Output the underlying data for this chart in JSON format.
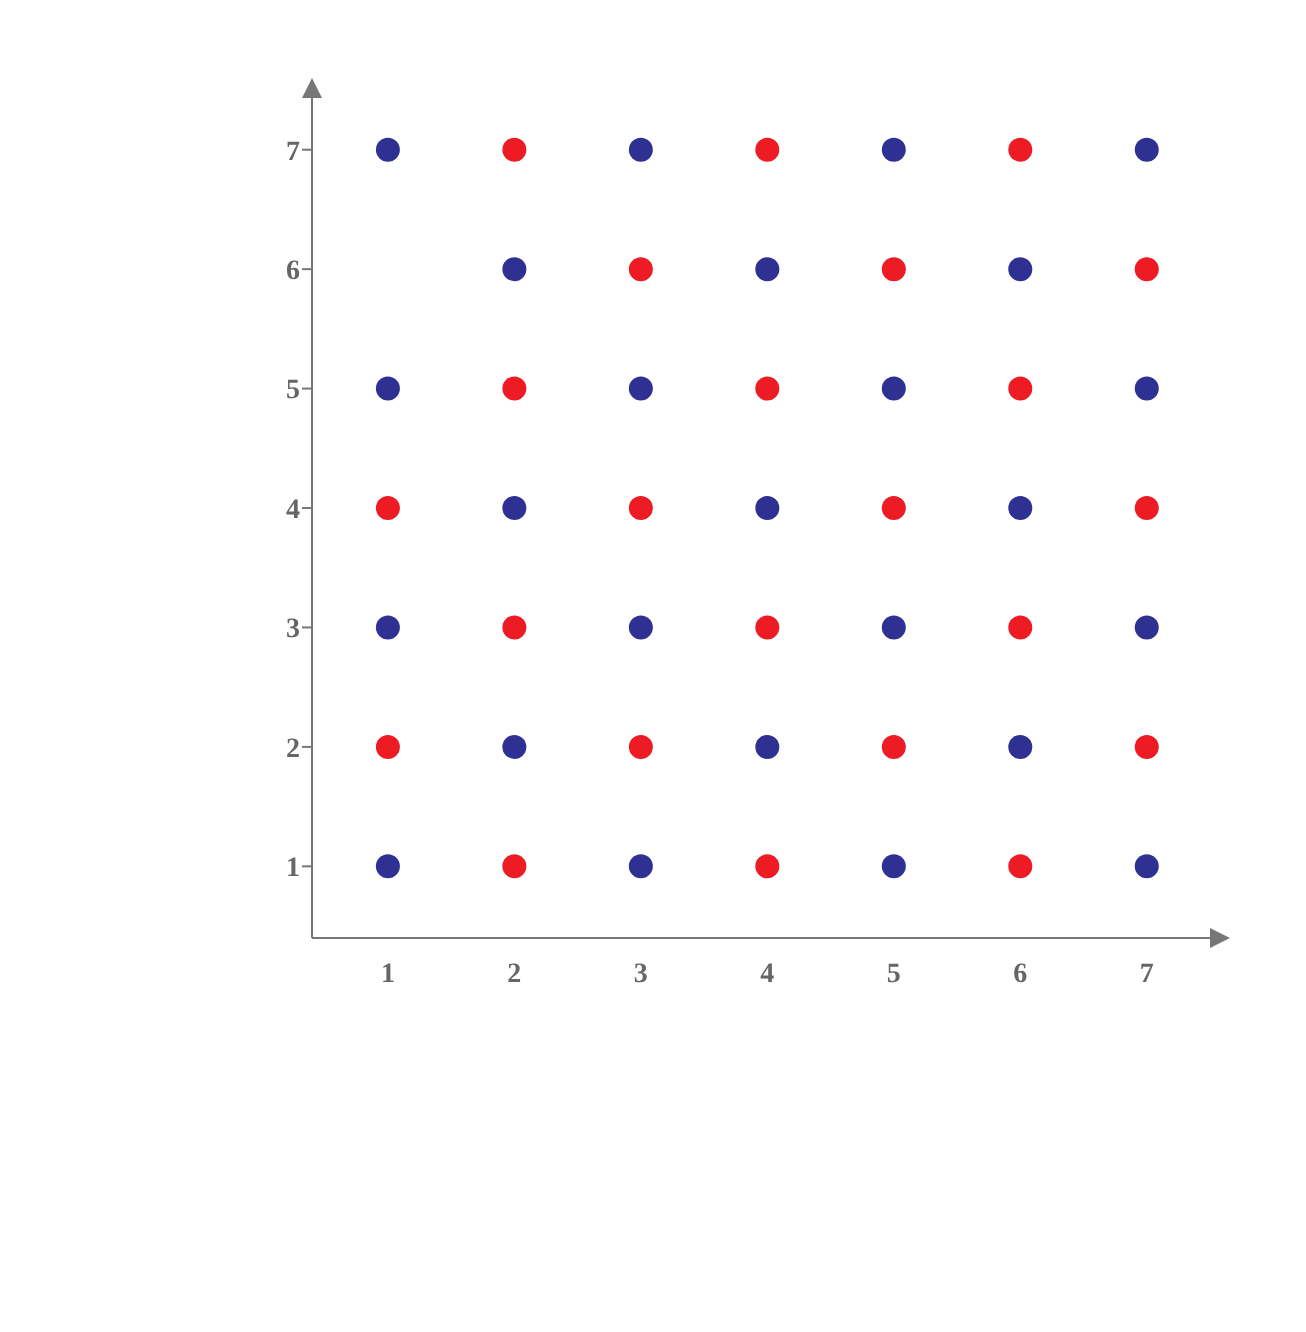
{
  "chart_data": {
    "type": "scatter",
    "xlim": [
      0.4,
      7.5
    ],
    "ylim": [
      0.4,
      7.5
    ],
    "xticks": [
      1,
      2,
      3,
      4,
      5,
      6,
      7
    ],
    "yticks": [
      1,
      2,
      3,
      4,
      5,
      6,
      7
    ],
    "grid": false,
    "marker": "circle",
    "series": [
      {
        "color": "#2e3192",
        "x": [
          1,
          3,
          5,
          7,
          2,
          4,
          6,
          1,
          3,
          5,
          7,
          2,
          4,
          6,
          1,
          3,
          5,
          7,
          2,
          4,
          6,
          1,
          3,
          5,
          7
        ],
        "values": [
          1,
          1,
          1,
          1,
          2,
          2,
          2,
          3,
          3,
          3,
          3,
          4,
          4,
          4,
          5,
          5,
          5,
          5,
          6,
          6,
          6,
          7,
          7,
          7,
          7
        ]
      },
      {
        "color": "#ed1c24",
        "x": [
          2,
          4,
          6,
          1,
          3,
          5,
          7,
          2,
          4,
          6,
          1,
          3,
          5,
          7,
          2,
          4,
          6,
          3,
          5,
          7,
          2,
          4,
          6
        ],
        "values": [
          1,
          1,
          1,
          2,
          2,
          2,
          2,
          3,
          3,
          3,
          4,
          4,
          4,
          4,
          5,
          5,
          5,
          6,
          6,
          6,
          7,
          7,
          7
        ]
      }
    ]
  }
}
